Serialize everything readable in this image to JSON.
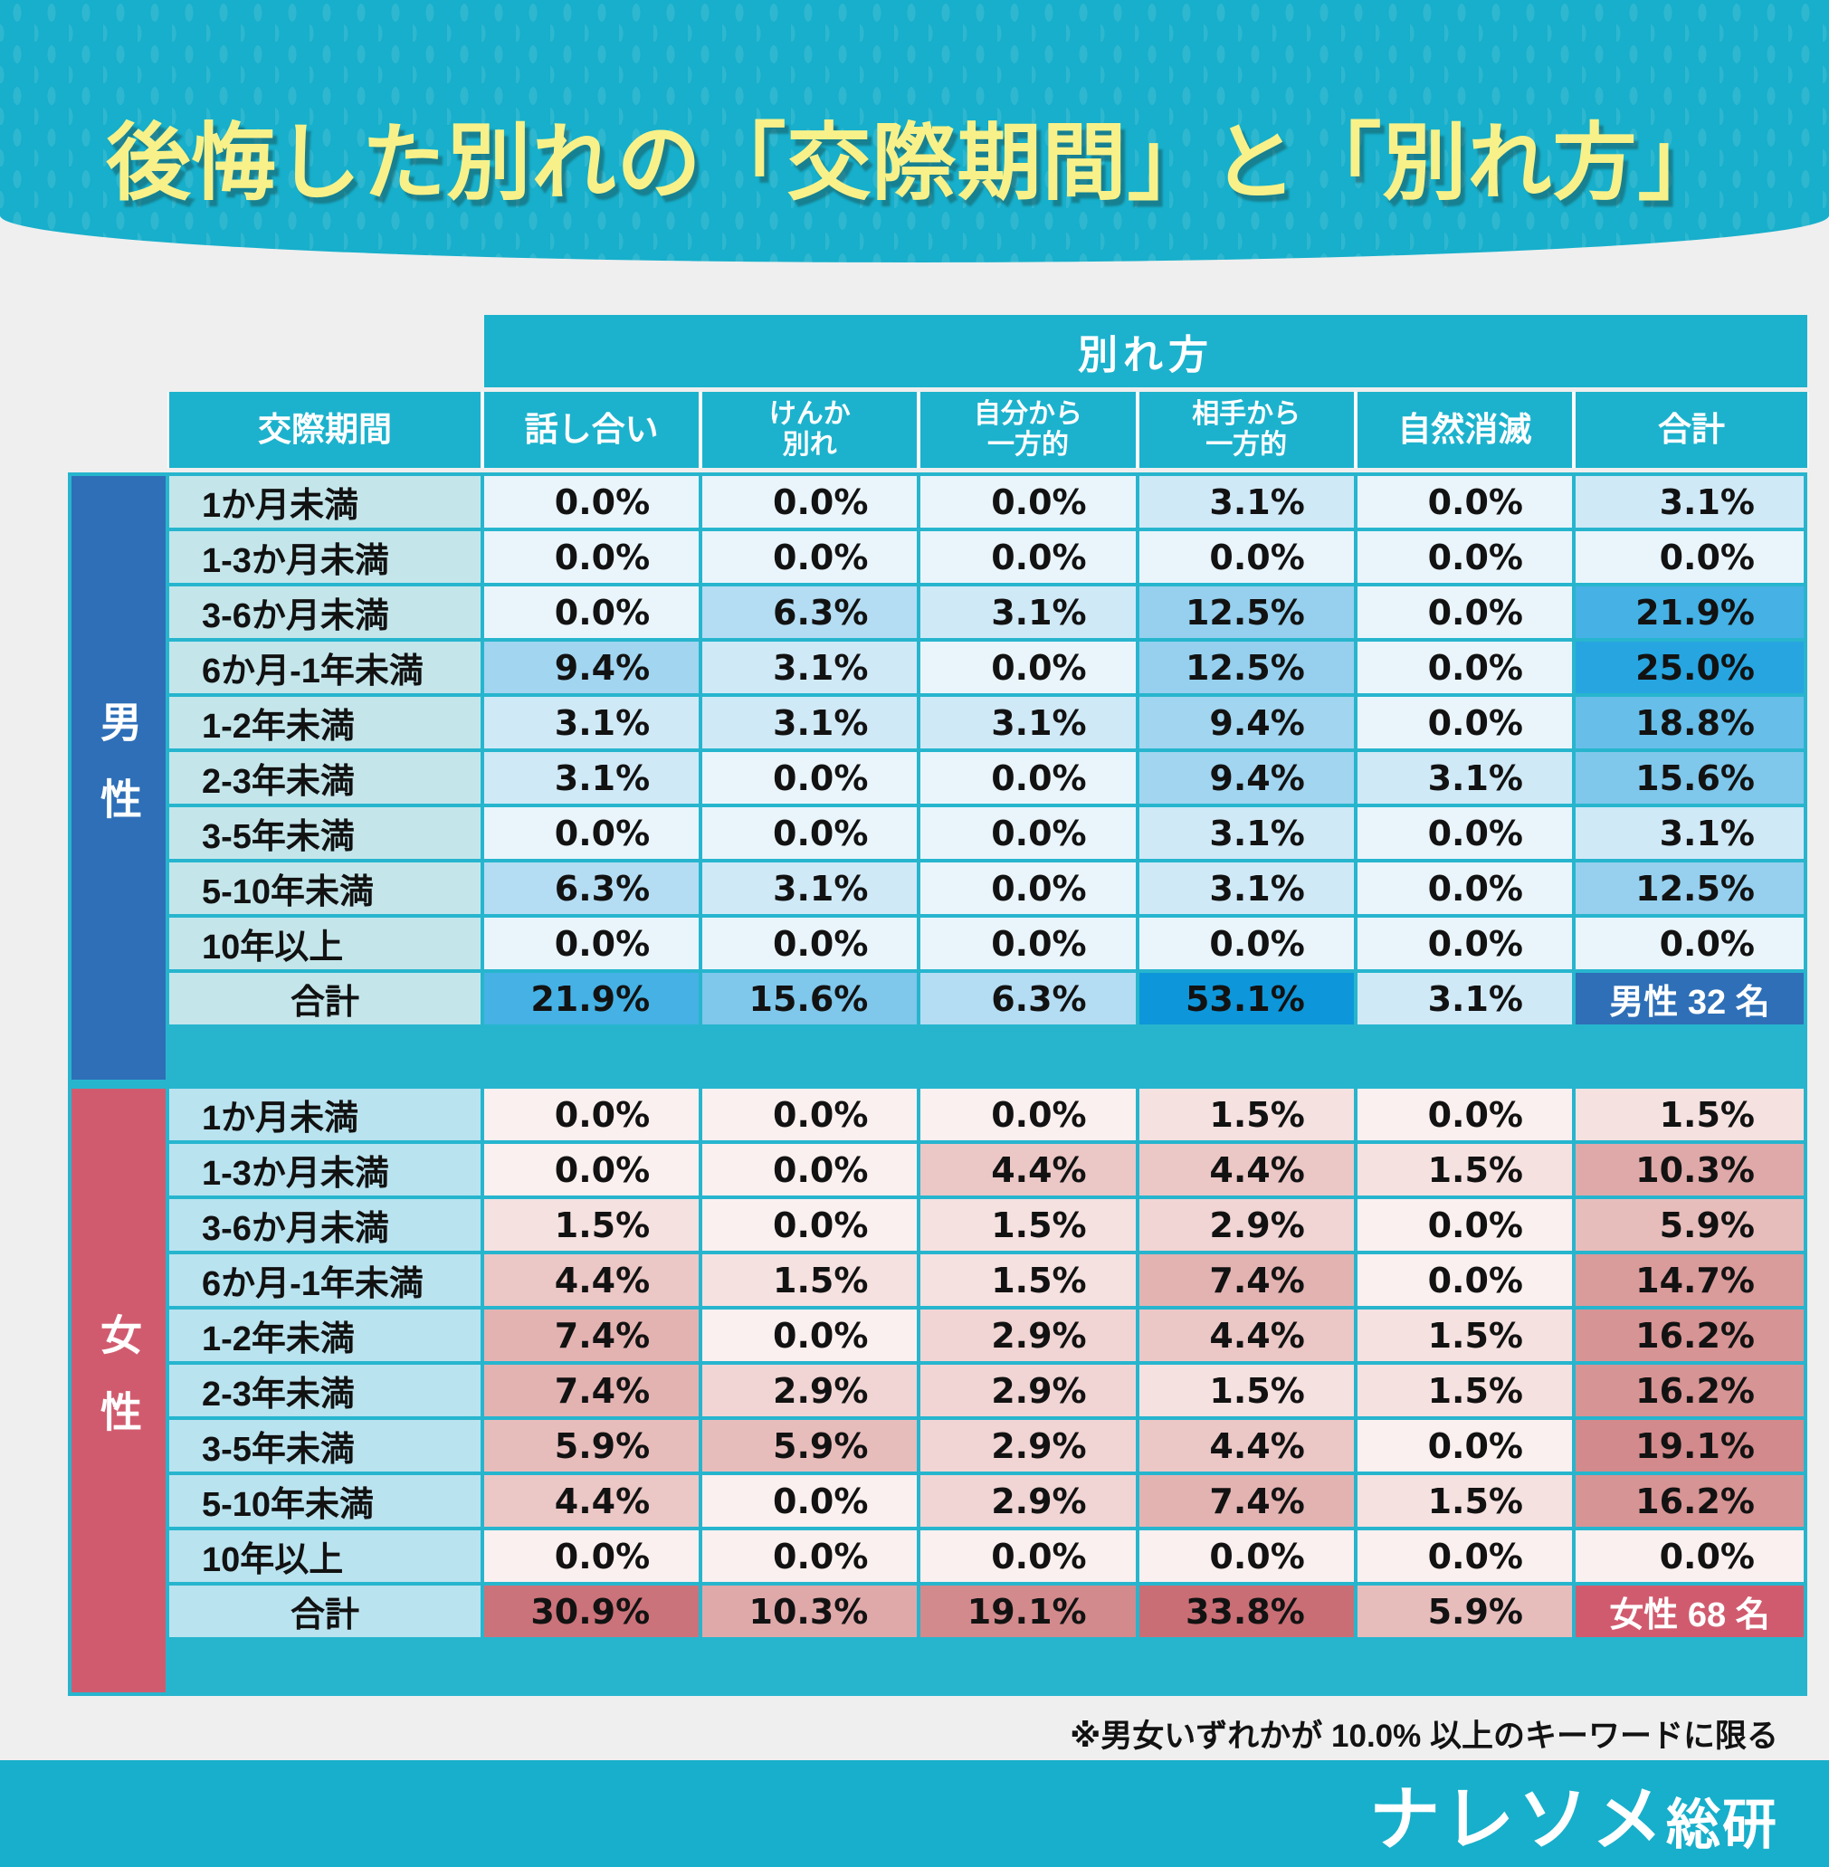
{
  "theme": {
    "bg": "#EFEFEF",
    "teal": "#17AFCB",
    "hdr_teal": "#1CB2CD",
    "grid_teal": "#27B5CE",
    "yellow": "#F8F189",
    "ink": "#121212",
    "white": "#FFFFFF"
  },
  "banner": {
    "title": "後悔した別れの「交際期間」と「別れ方」"
  },
  "table": {
    "group_header": "別れ方",
    "period_header": "交際期間",
    "method_headers": [
      "話し合い",
      "けんか\n別れ",
      "自分から\n一方的",
      "相手から\n一方的",
      "自然消滅",
      "合計"
    ],
    "sections": [
      {
        "id": "male",
        "side_bg": "#2E6FB7",
        "label_bg": "#C4E6EB",
        "count_bg": "#2E6FB7",
        "scale": {
          "0.0": "#EAF5FB",
          "3.1": "#D0E9F7",
          "6.3": "#B4DDF3",
          "9.4": "#A2D5F0",
          "12.5": "#96D0EE",
          "15.6": "#7FC7EB",
          "18.8": "#67BEE9",
          "21.9": "#45B1E5",
          "25.0": "#27A5E0",
          "53.1": "#0E96DA"
        }
      },
      {
        "id": "female",
        "side_bg": "#D15B6E",
        "label_bg": "#B9E3EF",
        "count_bg": "#D15B6E",
        "scale": {
          "0.0": "#FAF0EF",
          "1.5": "#F5E1E0",
          "2.9": "#F0D5D4",
          "4.4": "#EBC7C6",
          "5.9": "#E7BDBC",
          "7.4": "#E3B3B2",
          "10.3": "#DFA9A9",
          "14.7": "#DA9B9B",
          "16.2": "#D79495",
          "19.1": "#D28A8C",
          "30.9": "#CB737A",
          "33.8": "#C96E75"
        }
      }
    ]
  },
  "chart_data": {
    "type": "heatmap",
    "title": "後悔した別れの「交際期間」と「別れ方」",
    "col_group_label": "別れ方",
    "row_group_label": "交際期間",
    "columns": [
      "話し合い",
      "けんか別れ",
      "自分から一方的",
      "相手から一方的",
      "自然消滅",
      "合計"
    ],
    "unit": "%",
    "sections": [
      {
        "name": "男性",
        "respondents": 32,
        "rows": [
          {
            "period": "1か月未満",
            "values": [
              0.0,
              0.0,
              0.0,
              3.1,
              0.0,
              3.1
            ]
          },
          {
            "period": "1-3か月未満",
            "values": [
              0.0,
              0.0,
              0.0,
              0.0,
              0.0,
              0.0
            ]
          },
          {
            "period": "3-6か月未満",
            "values": [
              0.0,
              6.3,
              3.1,
              12.5,
              0.0,
              21.9
            ]
          },
          {
            "period": "6か月-1年未満",
            "values": [
              9.4,
              3.1,
              0.0,
              12.5,
              0.0,
              25.0
            ]
          },
          {
            "period": "1-2年未満",
            "values": [
              3.1,
              3.1,
              3.1,
              9.4,
              0.0,
              18.8
            ]
          },
          {
            "period": "2-3年未満",
            "values": [
              3.1,
              0.0,
              0.0,
              9.4,
              3.1,
              15.6
            ]
          },
          {
            "period": "3-5年未満",
            "values": [
              0.0,
              0.0,
              0.0,
              3.1,
              0.0,
              3.1
            ]
          },
          {
            "period": "5-10年未満",
            "values": [
              6.3,
              3.1,
              0.0,
              3.1,
              0.0,
              12.5
            ]
          },
          {
            "period": "10年以上",
            "values": [
              0.0,
              0.0,
              0.0,
              0.0,
              0.0,
              0.0
            ]
          }
        ],
        "total": {
          "label": "合計",
          "values": [
            21.9,
            15.6,
            6.3,
            53.1,
            3.1
          ],
          "count_label": "男性 32 名"
        }
      },
      {
        "name": "女性",
        "respondents": 68,
        "rows": [
          {
            "period": "1か月未満",
            "values": [
              0.0,
              0.0,
              0.0,
              1.5,
              0.0,
              1.5
            ]
          },
          {
            "period": "1-3か月未満",
            "values": [
              0.0,
              0.0,
              4.4,
              4.4,
              1.5,
              10.3
            ]
          },
          {
            "period": "3-6か月未満",
            "values": [
              1.5,
              0.0,
              1.5,
              2.9,
              0.0,
              5.9
            ]
          },
          {
            "period": "6か月-1年未満",
            "values": [
              4.4,
              1.5,
              1.5,
              7.4,
              0.0,
              14.7
            ]
          },
          {
            "period": "1-2年未満",
            "values": [
              7.4,
              0.0,
              2.9,
              4.4,
              1.5,
              16.2
            ]
          },
          {
            "period": "2-3年未満",
            "values": [
              7.4,
              2.9,
              2.9,
              1.5,
              1.5,
              16.2
            ]
          },
          {
            "period": "3-5年未満",
            "values": [
              5.9,
              5.9,
              2.9,
              4.4,
              0.0,
              19.1
            ]
          },
          {
            "period": "5-10年未満",
            "values": [
              4.4,
              0.0,
              2.9,
              7.4,
              1.5,
              16.2
            ]
          },
          {
            "period": "10年以上",
            "values": [
              0.0,
              0.0,
              0.0,
              0.0,
              0.0,
              0.0
            ]
          }
        ],
        "total": {
          "label": "合計",
          "values": [
            30.9,
            10.3,
            19.1,
            33.8,
            5.9
          ],
          "count_label": "女性 68 名"
        }
      }
    ],
    "note": "※男女いずれかが 10.0% 以上のキーワードに限る"
  },
  "footer": {
    "logo_main": "ナレソメ",
    "logo_sub": "総研"
  }
}
